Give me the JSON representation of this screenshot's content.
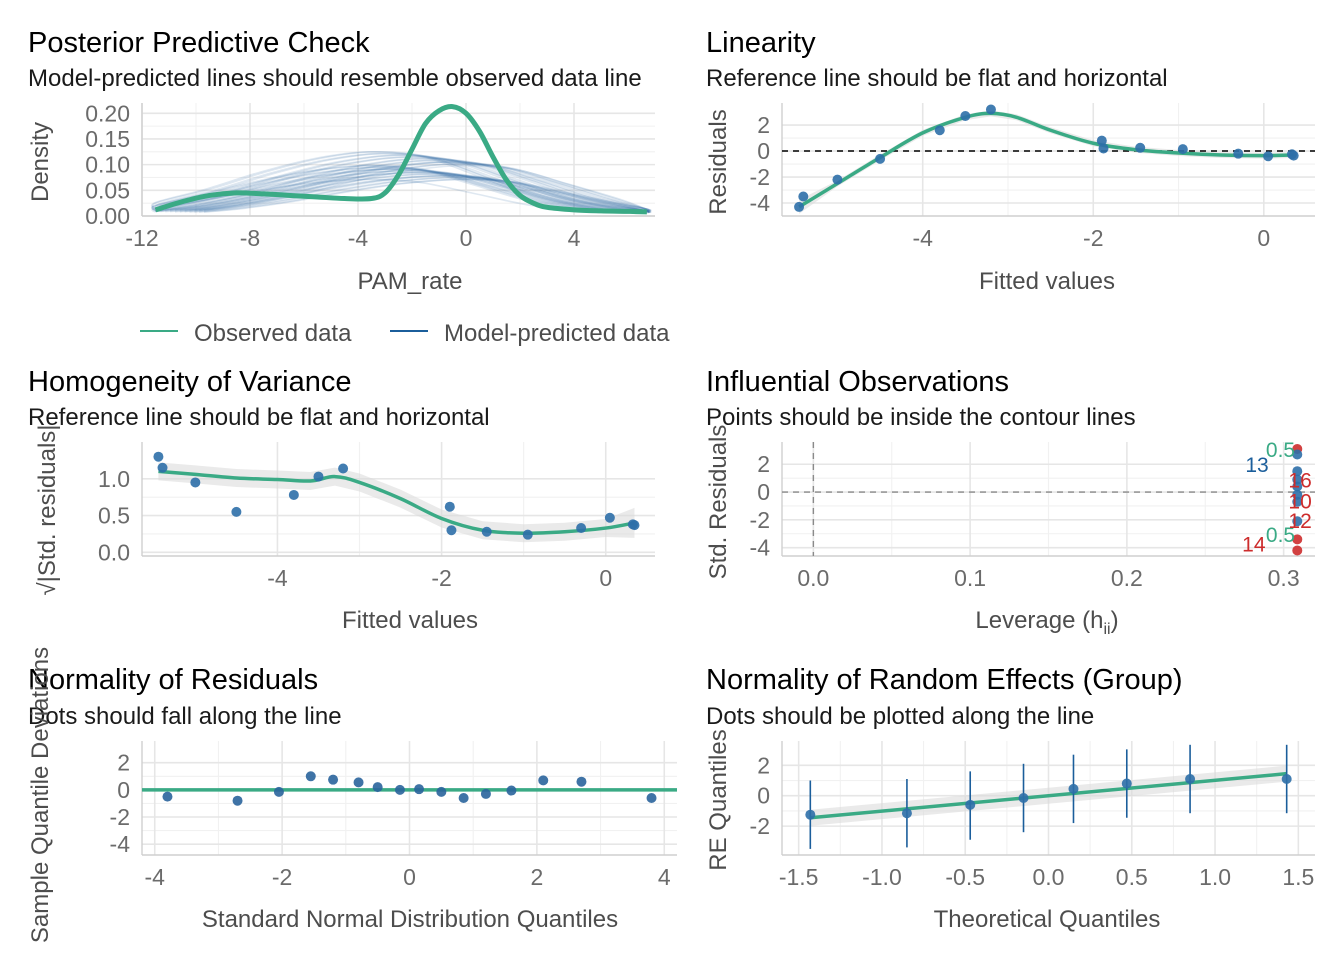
{
  "colors": {
    "observed": "#3aaa85",
    "predicted": "#1b5e9b",
    "point": "#2e6fa8",
    "smooth": "#3aaa85",
    "band": "#d9d9d9",
    "influential": "#cd2c2c",
    "contour": "#3aaa85"
  },
  "legend": {
    "observed_label": "Observed data",
    "predicted_label": "Model-predicted data"
  },
  "chart_data": [
    {
      "id": "ppc",
      "type": "line",
      "title": "Posterior Predictive Check",
      "subtitle": "Model-predicted lines should resemble observed data line",
      "xlabel": "PAM_rate",
      "ylabel": "Density",
      "xlim": [
        -12,
        7
      ],
      "ylim": [
        0,
        0.22
      ],
      "xticks": [
        -12,
        -8,
        -4,
        0,
        4
      ],
      "yticks": [
        0.0,
        0.05,
        0.1,
        0.15,
        0.2
      ],
      "ytick_labels": [
        "0.00",
        "0.05",
        "0.10",
        "0.15",
        "0.20"
      ],
      "series": [
        {
          "name": "Observed data",
          "x": [
            -11.5,
            -10.5,
            -9.5,
            -8.5,
            -7.5,
            -6.5,
            -5.5,
            -4.5,
            -3.5,
            -3.0,
            -2.5,
            -2.0,
            -1.5,
            -1.0,
            -0.5,
            0.0,
            0.5,
            1.0,
            1.5,
            2.0,
            2.5,
            3.0,
            4.0,
            5.0,
            6.0,
            6.7
          ],
          "y": [
            0.012,
            0.028,
            0.04,
            0.045,
            0.043,
            0.04,
            0.037,
            0.034,
            0.034,
            0.045,
            0.08,
            0.13,
            0.18,
            0.205,
            0.213,
            0.2,
            0.165,
            0.115,
            0.07,
            0.04,
            0.025,
            0.017,
            0.012,
            0.01,
            0.009,
            0.008
          ]
        },
        {
          "name": "Model-predicted data",
          "x": [
            -11.5,
            -10,
            -8,
            -6,
            -4,
            -2,
            0,
            2,
            4,
            6,
            6.7
          ],
          "y": [
            0.01,
            0.02,
            0.04,
            0.065,
            0.085,
            0.095,
            0.088,
            0.06,
            0.03,
            0.012,
            0.009
          ]
        }
      ]
    },
    {
      "id": "linearity",
      "type": "scatter",
      "title": "Linearity",
      "subtitle": "Reference line should be flat and horizontal",
      "xlabel": "Fitted values",
      "ylabel": "Residuals",
      "xlim": [
        -5.65,
        0.6
      ],
      "ylim": [
        -5,
        3.7
      ],
      "xticks": [
        -4,
        -2,
        0
      ],
      "yticks": [
        -4,
        -2,
        0,
        2
      ],
      "reference_y": 0,
      "points": [
        [
          -5.45,
          -4.3
        ],
        [
          -5.4,
          -3.5
        ],
        [
          -5.0,
          -2.2
        ],
        [
          -4.5,
          -0.6
        ],
        [
          -3.8,
          1.6
        ],
        [
          -3.5,
          2.7
        ],
        [
          -3.2,
          3.2
        ],
        [
          -1.9,
          0.8
        ],
        [
          -1.88,
          0.2
        ],
        [
          -1.45,
          0.25
        ],
        [
          -0.95,
          0.15
        ],
        [
          -0.3,
          -0.2
        ],
        [
          0.05,
          -0.4
        ],
        [
          0.35,
          -0.35
        ],
        [
          0.33,
          -0.25
        ]
      ],
      "smooth": {
        "x": [
          -5.45,
          -5.0,
          -4.5,
          -4.0,
          -3.5,
          -3.2,
          -2.9,
          -2.5,
          -2.0,
          -1.5,
          -1.0,
          -0.5,
          0.0,
          0.35
        ],
        "y": [
          -4.3,
          -2.5,
          -0.5,
          1.4,
          2.6,
          2.9,
          2.6,
          1.6,
          0.6,
          0.1,
          -0.15,
          -0.3,
          -0.35,
          -0.3
        ]
      }
    },
    {
      "id": "homogeneity",
      "type": "scatter",
      "title": "Homogeneity of Variance",
      "subtitle": "Reference line should be flat and horizontal",
      "xlabel": "Fitted values",
      "ylabel": "√|Std. residuals|",
      "xlim": [
        -5.65,
        0.6
      ],
      "ylim": [
        -0.05,
        1.5
      ],
      "xticks": [
        -4,
        -2,
        0
      ],
      "yticks": [
        0.0,
        0.5,
        1.0
      ],
      "ytick_labels": [
        "0.0",
        "0.5",
        "1.0"
      ],
      "points": [
        [
          -5.45,
          1.3
        ],
        [
          -5.4,
          1.15
        ],
        [
          -5.0,
          0.95
        ],
        [
          -4.5,
          0.55
        ],
        [
          -3.8,
          0.78
        ],
        [
          -3.5,
          1.03
        ],
        [
          -3.2,
          1.14
        ],
        [
          -1.9,
          0.62
        ],
        [
          -1.88,
          0.3
        ],
        [
          -1.45,
          0.28
        ],
        [
          -0.95,
          0.24
        ],
        [
          -0.3,
          0.33
        ],
        [
          0.05,
          0.47
        ],
        [
          0.35,
          0.37
        ],
        [
          0.33,
          0.38
        ]
      ],
      "smooth": {
        "x": [
          -5.45,
          -5.0,
          -4.5,
          -4.0,
          -3.6,
          -3.3,
          -3.0,
          -2.5,
          -2.0,
          -1.5,
          -1.0,
          -0.5,
          0.0,
          0.35
        ],
        "y": [
          1.1,
          1.06,
          1.01,
          0.99,
          0.97,
          1.03,
          0.95,
          0.73,
          0.46,
          0.3,
          0.26,
          0.28,
          0.33,
          0.4
        ]
      }
    },
    {
      "id": "influential",
      "type": "scatter",
      "title": "Influential Observations",
      "subtitle": "Points should be inside the contour lines",
      "xlabel": "Leverage (hii)",
      "ylabel": "Std. Residuals",
      "xlim": [
        -0.02,
        0.32
      ],
      "ylim": [
        -4.6,
        3.6
      ],
      "xticks": [
        0.0,
        0.1,
        0.2,
        0.3
      ],
      "xtick_labels": [
        "0.0",
        "0.1",
        "0.2",
        "0.3"
      ],
      "yticks": [
        -4,
        -2,
        0,
        2
      ],
      "reference_y": 0,
      "reference_x": 0,
      "points": [
        [
          0.3087,
          3.1
        ],
        [
          0.3087,
          2.7
        ],
        [
          0.3087,
          1.5
        ],
        [
          0.3087,
          0.9
        ],
        [
          0.3087,
          0.4
        ],
        [
          0.3087,
          -0.2
        ],
        [
          0.3087,
          -0.7
        ],
        [
          0.3087,
          -2.1
        ],
        [
          0.3087,
          -3.4
        ],
        [
          0.3087,
          -4.2
        ]
      ],
      "influential_indices": [
        0,
        8,
        9
      ],
      "labels": [
        {
          "text": "13",
          "x": 0.283,
          "y": 2.0,
          "color": "#1b5e9b"
        },
        {
          "text": "16",
          "x": 0.3105,
          "y": 0.9,
          "color": "#cd2c2c"
        },
        {
          "text": "10",
          "x": 0.3105,
          "y": -0.6,
          "color": "#cd2c2c"
        },
        {
          "text": "12",
          "x": 0.3105,
          "y": -2.0,
          "color": "#cd2c2c"
        },
        {
          "text": "14",
          "x": 0.281,
          "y": -3.7,
          "color": "#cd2c2c"
        }
      ],
      "contour_labels": [
        {
          "text": "0.5",
          "x": 0.298,
          "y": 3.1
        },
        {
          "text": "0.5",
          "x": 0.298,
          "y": -3.0
        }
      ]
    },
    {
      "id": "qq-residuals",
      "type": "scatter",
      "title": "Normality of Residuals",
      "subtitle": "Dots should fall along the line",
      "xlabel": "Standard Normal Distribution Quantiles",
      "ylabel": "Sample Quantile Deviations",
      "xlim": [
        -4.2,
        4.2
      ],
      "ylim": [
        -4.8,
        3.6
      ],
      "xticks": [
        -4,
        -2,
        0,
        2,
        4
      ],
      "yticks": [
        -4,
        -2,
        0,
        2
      ],
      "reference_y": 0,
      "points": [
        [
          -3.8,
          -0.5
        ],
        [
          -2.7,
          -0.8
        ],
        [
          -2.05,
          -0.15
        ],
        [
          -1.55,
          1.0
        ],
        [
          -1.2,
          0.75
        ],
        [
          -0.8,
          0.55
        ],
        [
          -0.5,
          0.2
        ],
        [
          -0.15,
          0.0
        ],
        [
          0.15,
          0.05
        ],
        [
          0.5,
          -0.15
        ],
        [
          0.85,
          -0.6
        ],
        [
          1.2,
          -0.3
        ],
        [
          1.6,
          -0.05
        ],
        [
          2.1,
          0.7
        ],
        [
          2.7,
          0.6
        ],
        [
          3.8,
          -0.6
        ]
      ]
    },
    {
      "id": "re-qq",
      "type": "scatter",
      "title": "Normality of Random Effects (Group)",
      "subtitle": "Dots should be plotted along the line",
      "xlabel": "Theoretical Quantiles",
      "ylabel": "RE Quantiles",
      "xlim": [
        -1.6,
        1.6
      ],
      "ylim": [
        -3.9,
        3.6
      ],
      "xticks": [
        -1.5,
        -1.0,
        -0.5,
        0.0,
        0.5,
        1.0,
        1.5
      ],
      "xtick_labels": [
        "-1.5",
        "-1.0",
        "-0.5",
        "0.0",
        "0.5",
        "1.0",
        "1.5"
      ],
      "yticks": [
        -2,
        0,
        2
      ],
      "points": [
        [
          -1.43,
          -1.25,
          -3.5,
          1.0
        ],
        [
          -0.85,
          -1.15,
          -3.4,
          1.1
        ],
        [
          -0.47,
          -0.6,
          -2.9,
          1.6
        ],
        [
          -0.15,
          -0.15,
          -2.4,
          2.1
        ],
        [
          0.15,
          0.45,
          -1.8,
          2.7
        ],
        [
          0.47,
          0.8,
          -1.45,
          3.05
        ],
        [
          0.85,
          1.1,
          -1.15,
          3.35
        ],
        [
          1.43,
          1.1,
          -1.15,
          3.35
        ]
      ],
      "line": {
        "x": [
          -1.43,
          1.43
        ],
        "y": [
          -1.45,
          1.45
        ]
      }
    }
  ]
}
